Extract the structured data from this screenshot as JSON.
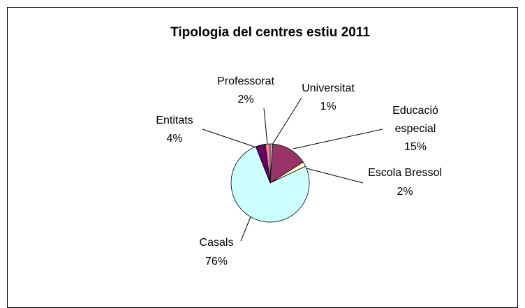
{
  "chart_data": {
    "type": "pie",
    "title": "Tipologia del centres estiu 2011",
    "categories": [
      "Universitat",
      "Educació especial",
      "Escola Bressol",
      "Casals",
      "Entitats",
      "Professorat"
    ],
    "values": [
      1,
      15,
      2,
      76,
      4,
      2
    ],
    "value_labels": [
      "1%",
      "15%",
      "2%",
      "76%",
      "4%",
      "2%"
    ],
    "colors": [
      "#ccccff",
      "#993366",
      "#ffffcc",
      "#ccffff",
      "#660066",
      "#ff8080"
    ]
  }
}
